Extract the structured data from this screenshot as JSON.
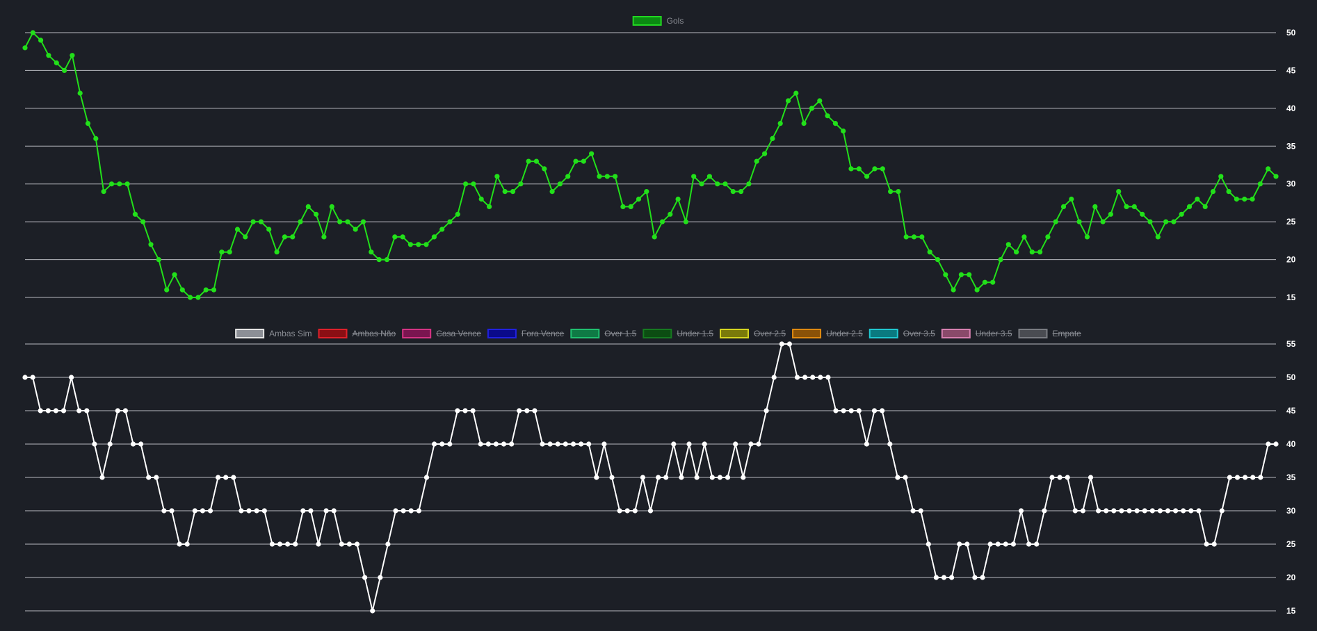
{
  "chart_data": [
    {
      "type": "line",
      "legend_position": "top",
      "grid": true,
      "ylim": [
        15,
        50
      ],
      "y_ticks": [
        15,
        20,
        25,
        30,
        35,
        40,
        45,
        50
      ],
      "legend": [
        {
          "label": "Gols",
          "fill": "#0b8a12",
          "border": "#22d622",
          "hidden": false
        }
      ],
      "series": [
        {
          "name": "Gols",
          "color": "#22e01a",
          "values": [
            48,
            50,
            49,
            47,
            46,
            45,
            47,
            42,
            38,
            36,
            29,
            30,
            30,
            30,
            26,
            25,
            22,
            20,
            16,
            18,
            16,
            15,
            15,
            16,
            16,
            21,
            21,
            24,
            23,
            25,
            25,
            24,
            21,
            23,
            23,
            25,
            27,
            26,
            23,
            27,
            25,
            25,
            24,
            25,
            21,
            20,
            20,
            23,
            23,
            22,
            22,
            22,
            23,
            24,
            25,
            26,
            30,
            30,
            28,
            27,
            31,
            29,
            29,
            30,
            33,
            33,
            32,
            29,
            30,
            31,
            33,
            33,
            34,
            31,
            31,
            31,
            27,
            27,
            28,
            29,
            23,
            25,
            26,
            28,
            25,
            31,
            30,
            31,
            30,
            30,
            29,
            29,
            30,
            33,
            34,
            36,
            38,
            41,
            42,
            38,
            40,
            41,
            39,
            38,
            37,
            32,
            32,
            31,
            32,
            32,
            29,
            29,
            23,
            23,
            23,
            21,
            20,
            18,
            16,
            18,
            18,
            16,
            17,
            17,
            20,
            22,
            21,
            23,
            21,
            21,
            23,
            25,
            27,
            28,
            25,
            23,
            27,
            25,
            26,
            29,
            27,
            27,
            26,
            25,
            23,
            25,
            25,
            26,
            27,
            28,
            27,
            29,
            31,
            29,
            28,
            28,
            28,
            30,
            32,
            31
          ]
        }
      ]
    },
    {
      "type": "line",
      "legend_position": "top",
      "grid": true,
      "ylim": [
        15,
        55
      ],
      "y_ticks": [
        15,
        20,
        25,
        30,
        35,
        40,
        45,
        50,
        55
      ],
      "legend": [
        {
          "label": "Ambas Sim",
          "fill": "#8c8f96",
          "border": "#e6e6e6",
          "hidden": false
        },
        {
          "label": "Ambas Não",
          "fill": "#8b0f14",
          "border": "#e0202a",
          "hidden": true
        },
        {
          "label": "Casa Vence",
          "fill": "#7a1550",
          "border": "#d63384",
          "hidden": true
        },
        {
          "label": "Fora Vence",
          "fill": "#0a0a8a",
          "border": "#2020e0",
          "hidden": true
        },
        {
          "label": "Over 1.5",
          "fill": "#0f7a45",
          "border": "#20c070",
          "hidden": true
        },
        {
          "label": "Under 1.5",
          "fill": "#0c4d12",
          "border": "#167a20",
          "hidden": true
        },
        {
          "label": "Over 2.5",
          "fill": "#7a7a0a",
          "border": "#d6d620",
          "hidden": true
        },
        {
          "label": "Under 2.5",
          "fill": "#8a5208",
          "border": "#e08a10",
          "hidden": true
        },
        {
          "label": "Over 3.5",
          "fill": "#0a7a80",
          "border": "#20c8d0",
          "hidden": true
        },
        {
          "label": "Under 3.5",
          "fill": "#8a4a6a",
          "border": "#d880b0",
          "hidden": true
        },
        {
          "label": "Empate",
          "fill": "#4a4c52",
          "border": "#7a7c82",
          "hidden": true
        }
      ],
      "series": [
        {
          "name": "Ambas Sim",
          "color": "#ffffff",
          "values": [
            50,
            50,
            45,
            45,
            45,
            45,
            50,
            45,
            45,
            40,
            35,
            40,
            45,
            45,
            40,
            40,
            35,
            35,
            30,
            30,
            25,
            25,
            30,
            30,
            30,
            35,
            35,
            35,
            30,
            30,
            30,
            30,
            25,
            25,
            25,
            25,
            30,
            30,
            25,
            30,
            30,
            25,
            25,
            25,
            20,
            15,
            20,
            25,
            30,
            30,
            30,
            30,
            35,
            40,
            40,
            40,
            45,
            45,
            45,
            40,
            40,
            40,
            40,
            40,
            45,
            45,
            45,
            40,
            40,
            40,
            40,
            40,
            40,
            40,
            35,
            40,
            35,
            30,
            30,
            30,
            35,
            30,
            35,
            35,
            40,
            35,
            40,
            35,
            40,
            35,
            35,
            35,
            40,
            35,
            40,
            40,
            45,
            50,
            55,
            55,
            50,
            50,
            50,
            50,
            50,
            45,
            45,
            45,
            45,
            40,
            45,
            45,
            40,
            35,
            35,
            30,
            30,
            25,
            20,
            20,
            20,
            25,
            25,
            20,
            20,
            25,
            25,
            25,
            25,
            30,
            25,
            25,
            30,
            35,
            35,
            35,
            30,
            30,
            35,
            30,
            30,
            30,
            30,
            30,
            30,
            30,
            30,
            30,
            30,
            30,
            30,
            30,
            30,
            25,
            25,
            30,
            35,
            35,
            35,
            35,
            35,
            40,
            40
          ]
        }
      ]
    }
  ]
}
